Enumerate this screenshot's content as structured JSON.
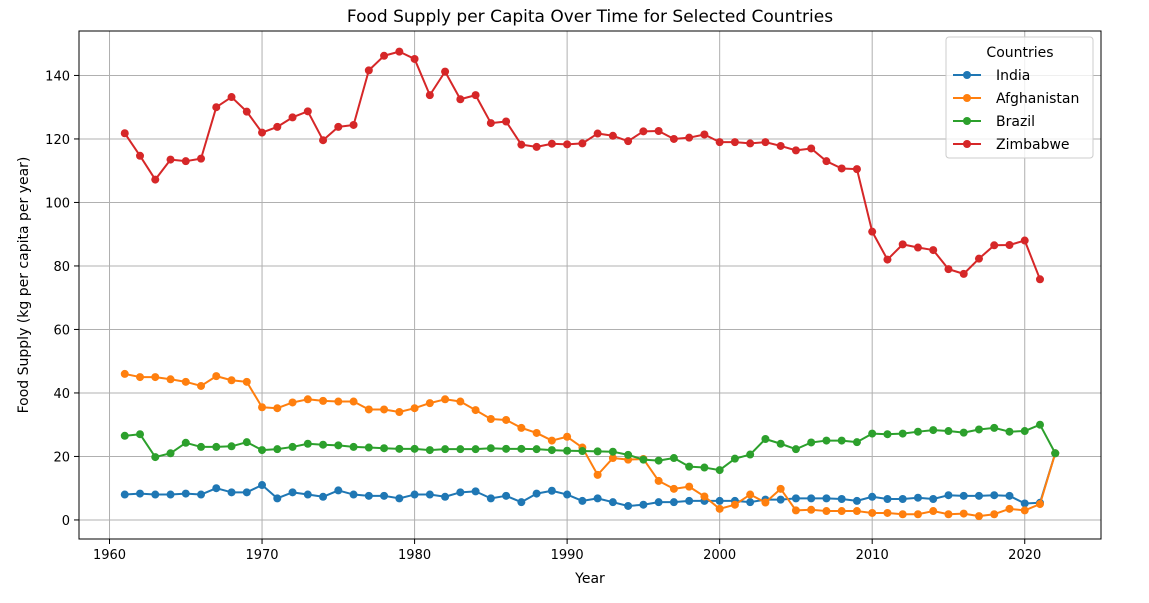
{
  "chart_data": {
    "type": "line",
    "title": "Food Supply per Capita Over Time for Selected Countries",
    "xlabel": "Year",
    "ylabel": "Food Supply (kg per capita per year)",
    "xlim": [
      1958,
      2025
    ],
    "ylim": [
      -6,
      154
    ],
    "xticks": [
      1960,
      1970,
      1980,
      1990,
      2000,
      2010,
      2020
    ],
    "yticks": [
      0,
      20,
      40,
      60,
      80,
      100,
      120,
      140
    ],
    "grid": true,
    "legend_title": "Countries",
    "legend_position": "top-right",
    "x": [
      1961,
      1962,
      1963,
      1964,
      1965,
      1966,
      1967,
      1968,
      1969,
      1970,
      1971,
      1972,
      1973,
      1974,
      1975,
      1976,
      1977,
      1978,
      1979,
      1980,
      1981,
      1982,
      1983,
      1984,
      1985,
      1986,
      1987,
      1988,
      1989,
      1990,
      1991,
      1992,
      1993,
      1994,
      1995,
      1996,
      1997,
      1998,
      1999,
      2000,
      2001,
      2002,
      2003,
      2004,
      2005,
      2006,
      2007,
      2008,
      2009,
      2010,
      2011,
      2012,
      2013,
      2014,
      2015,
      2016,
      2017,
      2018,
      2019,
      2020,
      2021,
      2022
    ],
    "series": [
      {
        "name": "India",
        "color": "#1f77b4",
        "values": [
          8,
          8.3,
          8,
          8,
          8.3,
          8,
          10,
          8.7,
          8.7,
          11,
          6.8,
          8.7,
          8,
          7.3,
          9.3,
          8,
          7.6,
          7.6,
          6.8,
          8,
          8,
          7.3,
          8.7,
          9,
          6.8,
          7.6,
          5.6,
          8.3,
          9.2,
          8,
          6,
          6.8,
          5.6,
          4.4,
          4.8,
          5.6,
          5.6,
          6,
          6,
          6,
          6,
          5.6,
          6.4,
          6.4,
          6.8,
          6.8,
          6.8,
          6.6,
          6,
          7.3,
          6.6,
          6.6,
          7,
          6.6,
          7.8,
          7.6,
          7.6,
          7.8,
          7.6,
          5.2,
          5.4,
          21
        ]
      },
      {
        "name": "Afghanistan",
        "color": "#ff7f0e",
        "values": [
          46,
          45,
          45,
          44.3,
          43.5,
          42.2,
          45.3,
          44,
          43.5,
          35.5,
          35.2,
          37,
          38,
          37.5,
          37.3,
          37.3,
          34.8,
          34.8,
          34,
          35.2,
          36.8,
          38,
          37.3,
          34.6,
          31.8,
          31.5,
          29,
          27.4,
          25,
          26.2,
          22.8,
          14.2,
          19.5,
          19,
          19.2,
          12.3,
          9.8,
          10.5,
          7.4,
          3.5,
          4.8,
          8,
          5.5,
          9.8,
          3,
          3.2,
          2.8,
          2.8,
          2.8,
          2.2,
          2.2,
          1.8,
          1.8,
          2.8,
          1.8,
          2,
          1.2,
          1.8,
          3.5,
          3,
          5,
          21
        ]
      },
      {
        "name": "Brazil",
        "color": "#2ca02c",
        "values": [
          26.5,
          27,
          19.8,
          21,
          24.3,
          23,
          23,
          23.2,
          24.5,
          22,
          22.3,
          23,
          24,
          23.7,
          23.5,
          23,
          22.8,
          22.6,
          22.4,
          22.4,
          22,
          22.3,
          22.3,
          22.3,
          22.6,
          22.4,
          22.4,
          22.3,
          22,
          21.8,
          21.7,
          21.6,
          21.5,
          20.5,
          19,
          18.7,
          19.5,
          16.8,
          16.5,
          15.7,
          19.3,
          20.6,
          25.5,
          24,
          22.3,
          24.4,
          25,
          25,
          24.5,
          27.2,
          27,
          27.2,
          27.8,
          28.3,
          28,
          27.5,
          28.5,
          29,
          27.8,
          28,
          30,
          21
        ]
      },
      {
        "name": "Zimbabwe",
        "color": "#d62728",
        "values": [
          121.8,
          114.7,
          107.2,
          113.5,
          113,
          113.8,
          130,
          133.2,
          128.6,
          122,
          123.8,
          126.8,
          128.7,
          119.6,
          123.8,
          124.4,
          141.6,
          146.2,
          147.5,
          145.2,
          133.8,
          141.2,
          132.5,
          133.8,
          125,
          125.5,
          118.2,
          117.5,
          118.5,
          118.3,
          118.6,
          121.7,
          121,
          119.3,
          122.4,
          122.5,
          120,
          120.4,
          121.4,
          119,
          119,
          118.6,
          119,
          117.8,
          116.4,
          117,
          113,
          110.7,
          110.5,
          90.8,
          82,
          86.8,
          85.8,
          85,
          79,
          77.5,
          82.3,
          86.5,
          86.6,
          88,
          75.8,
          null
        ]
      }
    ]
  }
}
